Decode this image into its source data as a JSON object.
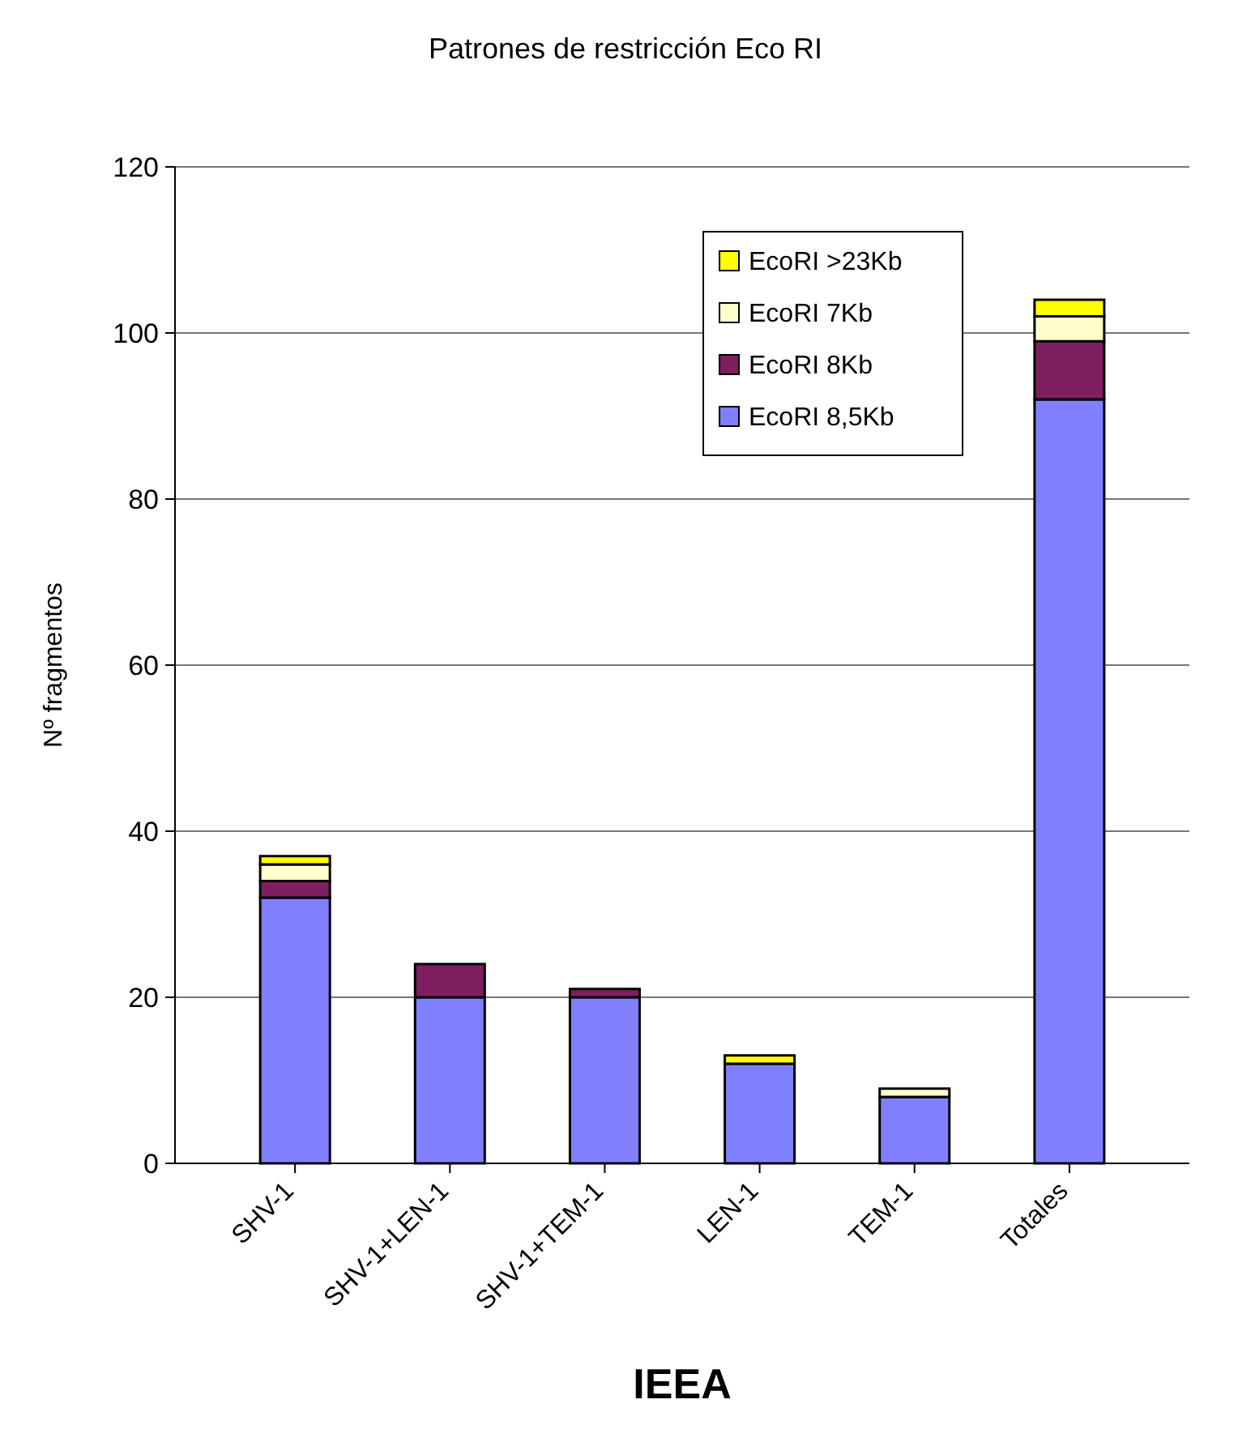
{
  "chart_data": {
    "type": "bar",
    "title": "Patrones de restricción Eco RI",
    "xlabel": "IEEA",
    "ylabel": "Nº fragmentos",
    "categories": [
      "SHV-1",
      "SHV-1+LEN-1",
      "SHV-1+TEM-1",
      "LEN-1",
      "TEM-1",
      "Totales"
    ],
    "stacked": true,
    "ylim": [
      0,
      120
    ],
    "yticks": [
      0,
      20,
      40,
      60,
      80,
      100,
      120
    ],
    "grid": "y",
    "legend": "top right",
    "series": [
      {
        "name": "EcoRI 8,5Kb",
        "color": "#8080ff",
        "values": [
          32,
          20,
          20,
          12,
          8,
          92
        ]
      },
      {
        "name": "EcoRI 8Kb",
        "color": "#7f1f5f",
        "values": [
          2,
          4,
          1,
          0,
          0,
          7
        ]
      },
      {
        "name": "EcoRI 7Kb",
        "color": "#ffffcc",
        "values": [
          2,
          0,
          0,
          0,
          1,
          3
        ]
      },
      {
        "name": "EcoRI >23Kb",
        "color": "#ffff00",
        "values": [
          1,
          0,
          0,
          1,
          0,
          2
        ]
      }
    ]
  }
}
